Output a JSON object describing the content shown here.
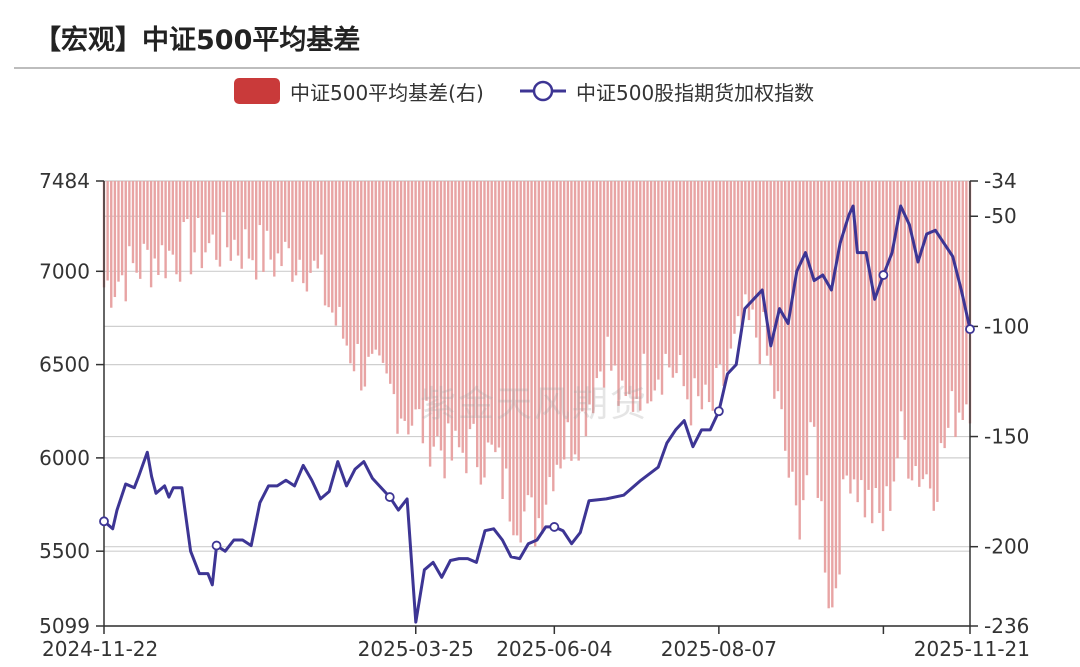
{
  "header": {
    "title": "【宏观】中证500平均基差"
  },
  "watermark": "紫金天风期货",
  "colors": {
    "bar": "#c93a3a",
    "bar_fill": "#e8a4a4",
    "line": "#3d3594",
    "grid": "#cfcfcf"
  },
  "chart_data": {
    "type": "bar+line",
    "legend": [
      "中证500平均基差(右)",
      "中证500股指期货加权指数"
    ],
    "legend_position": "top-center",
    "grid": true,
    "left_axis": {
      "range": [
        5099,
        7484
      ],
      "ticks": [
        "7484",
        "7000",
        "6500",
        "6000",
        "5500",
        "5099"
      ]
    },
    "right_axis": {
      "range": [
        -236,
        -34
      ],
      "ticks": [
        "-34",
        "-50",
        "-100",
        "-150",
        "-200",
        "-236"
      ]
    },
    "x_axis": {
      "ticks": [
        "2024-11-22",
        "2025-03-25",
        "2025-06-04",
        "2025-08-07",
        "2025-11-21"
      ]
    },
    "series": [
      {
        "name": "中证500股指期货加权指数",
        "type": "line",
        "axis": "left",
        "points": [
          [
            0,
            5660
          ],
          [
            0.01,
            5620
          ],
          [
            0.015,
            5720
          ],
          [
            0.025,
            5860
          ],
          [
            0.035,
            5840
          ],
          [
            0.04,
            5900
          ],
          [
            0.05,
            6030
          ],
          [
            0.055,
            5900
          ],
          [
            0.06,
            5810
          ],
          [
            0.07,
            5850
          ],
          [
            0.075,
            5790
          ],
          [
            0.08,
            5840
          ],
          [
            0.09,
            5840
          ],
          [
            0.1,
            5500
          ],
          [
            0.11,
            5380
          ],
          [
            0.12,
            5380
          ],
          [
            0.125,
            5320
          ],
          [
            0.13,
            5530
          ],
          [
            0.14,
            5500
          ],
          [
            0.15,
            5560
          ],
          [
            0.16,
            5560
          ],
          [
            0.17,
            5530
          ],
          [
            0.18,
            5760
          ],
          [
            0.19,
            5850
          ],
          [
            0.2,
            5850
          ],
          [
            0.21,
            5880
          ],
          [
            0.22,
            5850
          ],
          [
            0.23,
            5960
          ],
          [
            0.24,
            5880
          ],
          [
            0.25,
            5780
          ],
          [
            0.26,
            5820
          ],
          [
            0.27,
            5980
          ],
          [
            0.28,
            5850
          ],
          [
            0.29,
            5940
          ],
          [
            0.3,
            5980
          ],
          [
            0.31,
            5890
          ],
          [
            0.33,
            5790
          ],
          [
            0.34,
            5720
          ],
          [
            0.35,
            5780
          ],
          [
            0.36,
            5120
          ],
          [
            0.37,
            5400
          ],
          [
            0.38,
            5440
          ],
          [
            0.39,
            5360
          ],
          [
            0.4,
            5450
          ],
          [
            0.41,
            5460
          ],
          [
            0.42,
            5460
          ],
          [
            0.43,
            5440
          ],
          [
            0.44,
            5610
          ],
          [
            0.45,
            5620
          ],
          [
            0.46,
            5560
          ],
          [
            0.47,
            5470
          ],
          [
            0.48,
            5460
          ],
          [
            0.49,
            5540
          ],
          [
            0.5,
            5560
          ],
          [
            0.51,
            5630
          ],
          [
            0.52,
            5630
          ],
          [
            0.53,
            5610
          ],
          [
            0.54,
            5540
          ],
          [
            0.55,
            5600
          ],
          [
            0.56,
            5770
          ],
          [
            0.58,
            5780
          ],
          [
            0.6,
            5800
          ],
          [
            0.62,
            5880
          ],
          [
            0.64,
            5950
          ],
          [
            0.65,
            6080
          ],
          [
            0.66,
            6150
          ],
          [
            0.67,
            6200
          ],
          [
            0.68,
            6060
          ],
          [
            0.69,
            6150
          ],
          [
            0.7,
            6150
          ],
          [
            0.71,
            6250
          ],
          [
            0.72,
            6450
          ],
          [
            0.73,
            6500
          ],
          [
            0.74,
            6800
          ],
          [
            0.75,
            6850
          ],
          [
            0.76,
            6900
          ],
          [
            0.77,
            6600
          ],
          [
            0.78,
            6800
          ],
          [
            0.79,
            6720
          ],
          [
            0.8,
            7000
          ],
          [
            0.81,
            7100
          ],
          [
            0.82,
            6950
          ],
          [
            0.83,
            6980
          ],
          [
            0.84,
            6900
          ],
          [
            0.85,
            7150
          ],
          [
            0.86,
            7300
          ],
          [
            0.865,
            7350
          ],
          [
            0.87,
            7100
          ],
          [
            0.88,
            7100
          ],
          [
            0.89,
            6850
          ],
          [
            0.9,
            6980
          ],
          [
            0.91,
            7100
          ],
          [
            0.92,
            7350
          ],
          [
            0.93,
            7250
          ],
          [
            0.94,
            7050
          ],
          [
            0.95,
            7200
          ],
          [
            0.96,
            7220
          ],
          [
            0.97,
            7150
          ],
          [
            0.98,
            7080
          ],
          [
            0.99,
            6900
          ],
          [
            1.0,
            6690
          ]
        ],
        "markers": [
          0,
          0.13,
          0.33,
          0.52,
          0.71,
          0.9,
          1.0
        ]
      },
      {
        "name": "中证500平均基差(右)",
        "type": "bar",
        "axis": "right",
        "note": "negative basis, bars hang down from the top axis",
        "segments": [
          [
            0,
            -82
          ],
          [
            0.05,
            -70
          ],
          [
            0.1,
            -65
          ],
          [
            0.15,
            -62
          ],
          [
            0.2,
            -70
          ],
          [
            0.23,
            -68
          ],
          [
            0.25,
            -80
          ],
          [
            0.27,
            -100
          ],
          [
            0.3,
            -120
          ],
          [
            0.33,
            -130
          ],
          [
            0.35,
            -140
          ],
          [
            0.38,
            -150
          ],
          [
            0.4,
            -160
          ],
          [
            0.42,
            -155
          ],
          [
            0.45,
            -160
          ],
          [
            0.47,
            -180
          ],
          [
            0.5,
            -190
          ],
          [
            0.52,
            -160
          ],
          [
            0.55,
            -145
          ],
          [
            0.58,
            -110
          ],
          [
            0.6,
            -140
          ],
          [
            0.62,
            -125
          ],
          [
            0.65,
            -115
          ],
          [
            0.68,
            -135
          ],
          [
            0.7,
            -140
          ],
          [
            0.72,
            -120
          ],
          [
            0.74,
            -100
          ],
          [
            0.76,
            -105
          ],
          [
            0.78,
            -140
          ],
          [
            0.8,
            -190
          ],
          [
            0.82,
            -150
          ],
          [
            0.84,
            -232
          ],
          [
            0.86,
            -160
          ],
          [
            0.88,
            -180
          ],
          [
            0.9,
            -190
          ],
          [
            0.92,
            -150
          ],
          [
            0.94,
            -165
          ],
          [
            0.96,
            -170
          ],
          [
            0.98,
            -140
          ],
          [
            1.0,
            -130
          ]
        ]
      }
    ]
  }
}
